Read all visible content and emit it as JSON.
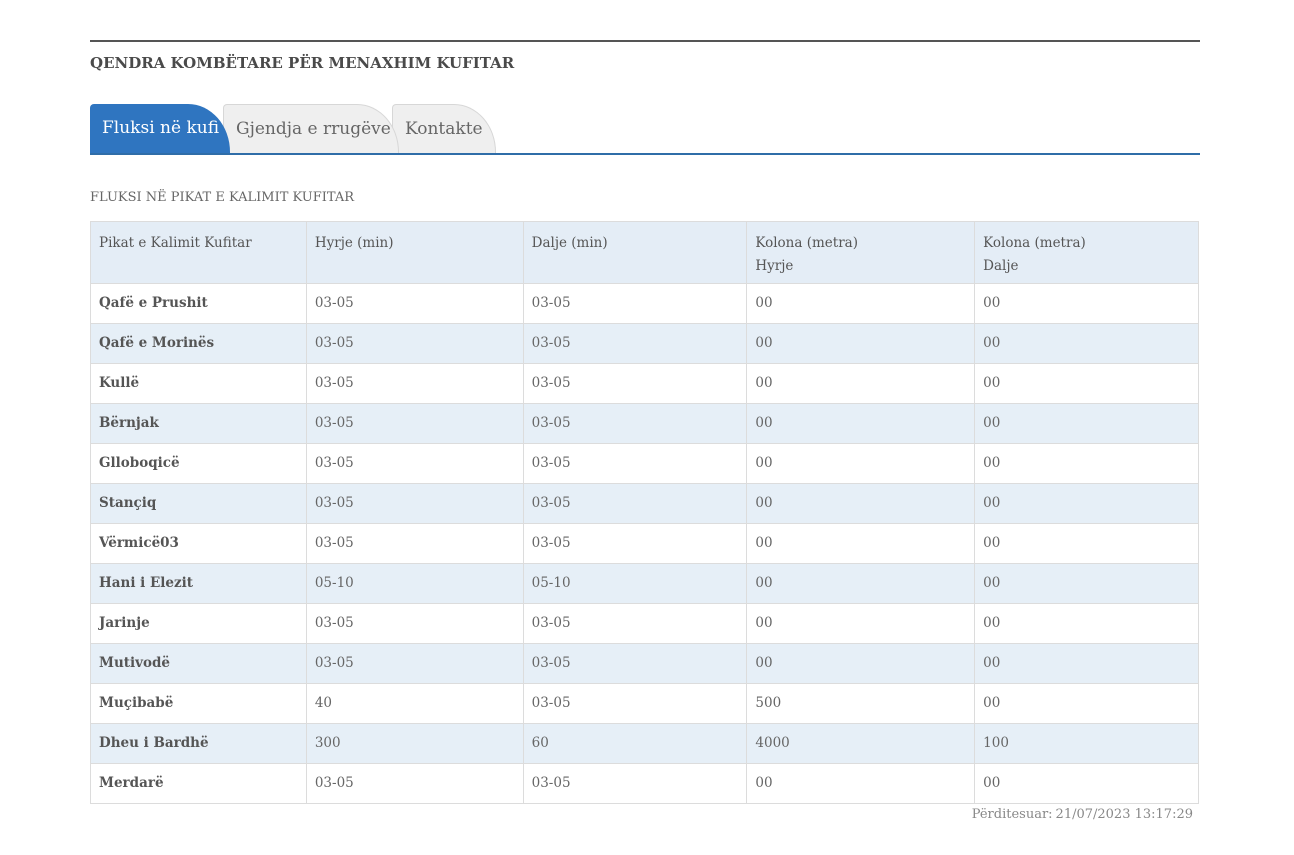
{
  "header": {
    "org_title": "QENDRA KOMBËTARE PËR MENAXHIM KUFITAR"
  },
  "tabs": [
    {
      "label": "Fluksi në kufi",
      "active": true
    },
    {
      "label": "Gjendja e rrugëve",
      "active": false
    },
    {
      "label": "Kontakte",
      "active": false
    }
  ],
  "section": {
    "title": "FLUKSI NË PIKAT E KALIMIT KUFITAR"
  },
  "table": {
    "headers": [
      {
        "line1": "Pikat e Kalimit Kufitar",
        "line2": ""
      },
      {
        "line1": "Hyrje (min)",
        "line2": ""
      },
      {
        "line1": "Dalje (min)",
        "line2": ""
      },
      {
        "line1": "Kolona (metra)",
        "line2": "Hyrje"
      },
      {
        "line1": "Kolona (metra)",
        "line2": "Dalje"
      }
    ],
    "rows": [
      [
        "Qafë e Prushit",
        "03-05",
        "03-05",
        "00",
        "00"
      ],
      [
        "Qafë e Morinës",
        "03-05",
        "03-05",
        "00",
        "00"
      ],
      [
        "Kullë",
        "03-05",
        "03-05",
        "00",
        "00"
      ],
      [
        "Bërnjak",
        "03-05",
        "03-05",
        "00",
        "00"
      ],
      [
        "Glloboqicë",
        "03-05",
        "03-05",
        "00",
        "00"
      ],
      [
        "Stançiq",
        "03-05",
        "03-05",
        "00",
        "00"
      ],
      [
        "Vërmicë03",
        "03-05",
        "03-05",
        "00",
        "00"
      ],
      [
        "Hani i Elezit",
        "05-10",
        "05-10",
        "00",
        "00"
      ],
      [
        "Jarinje",
        "03-05",
        "03-05",
        "00",
        "00"
      ],
      [
        "Mutivodë",
        "03-05",
        "03-05",
        "00",
        "00"
      ],
      [
        "Muçibabë",
        "40",
        "03-05",
        "500",
        "00"
      ],
      [
        "Dheu i Bardhë",
        "300",
        "60",
        "4000",
        "100"
      ],
      [
        "Merdarë",
        "03-05",
        "03-05",
        "00",
        "00"
      ]
    ]
  },
  "footer": {
    "updated_label": "Përditesuar:",
    "updated_value": "21/07/2023 13:17:29"
  },
  "colors": {
    "accent": "#2f75c0",
    "tab_rule": "#2f6da8",
    "header_bg": "#e4edf6",
    "stripe_bg": "#e6eff7"
  }
}
